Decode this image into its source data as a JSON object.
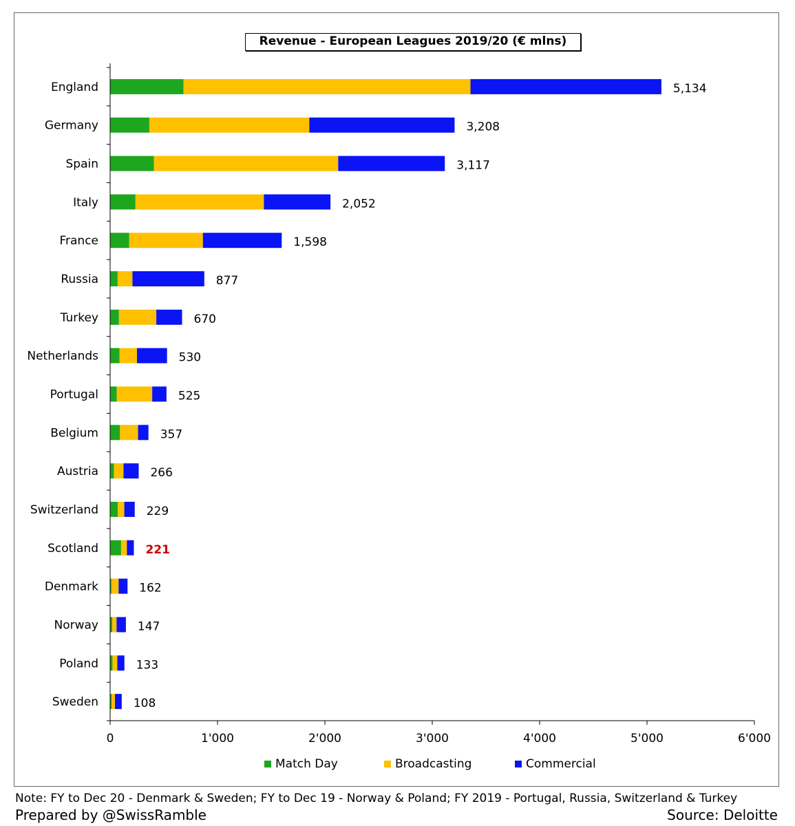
{
  "chart_data": {
    "type": "bar",
    "orientation": "horizontal",
    "stacked": true,
    "title": "Revenue - European Leagues 2019/20 (€ mlns)",
    "categories": [
      "England",
      "Germany",
      "Spain",
      "Italy",
      "France",
      "Russia",
      "Turkey",
      "Netherlands",
      "Portugal",
      "Belgium",
      "Austria",
      "Switzerland",
      "Scotland",
      "Denmark",
      "Norway",
      "Poland",
      "Sweden"
    ],
    "series": [
      {
        "name": "Match Day",
        "color": "#1fa61f",
        "values": [
          683,
          365,
          408,
          236,
          178,
          70,
          82,
          88,
          62,
          92,
          35,
          72,
          102,
          12,
          20,
          22,
          15
        ]
      },
      {
        "name": "Broadcasting",
        "color": "#ffc000",
        "values": [
          2673,
          1490,
          1716,
          1196,
          686,
          138,
          348,
          162,
          330,
          168,
          90,
          60,
          54,
          67,
          40,
          45,
          30
        ]
      },
      {
        "name": "Commercial",
        "color": "#0a14f5",
        "values": [
          1778,
          1353,
          993,
          620,
          734,
          669,
          240,
          280,
          133,
          97,
          141,
          97,
          65,
          83,
          87,
          66,
          63
        ]
      }
    ],
    "totals": [
      "5,134",
      "3,208",
      "3,117",
      "2,052",
      "1,598",
      "877",
      "670",
      "530",
      "525",
      "357",
      "266",
      "229",
      "221",
      "162",
      "147",
      "133",
      "108"
    ],
    "highlight_total": "Scotland",
    "highlight_color": "#cc0000",
    "xlim": [
      0,
      6000
    ],
    "xticks": [
      0,
      1000,
      2000,
      3000,
      4000,
      5000,
      6000
    ],
    "xtick_labels": [
      "0",
      "1'000",
      "2'000",
      "3'000",
      "4'000",
      "5'000",
      "6'000"
    ],
    "grid": false,
    "legend_position": "bottom"
  },
  "footer": {
    "note": "Note: FY to Dec 20 - Denmark & Sweden; FY to Dec 19 - Norway & Poland; FY 2019 - Portugal, Russia, Switzerland & Turkey",
    "prepared_by": "Prepared by @SwissRamble",
    "source": "Source: Deloitte"
  }
}
